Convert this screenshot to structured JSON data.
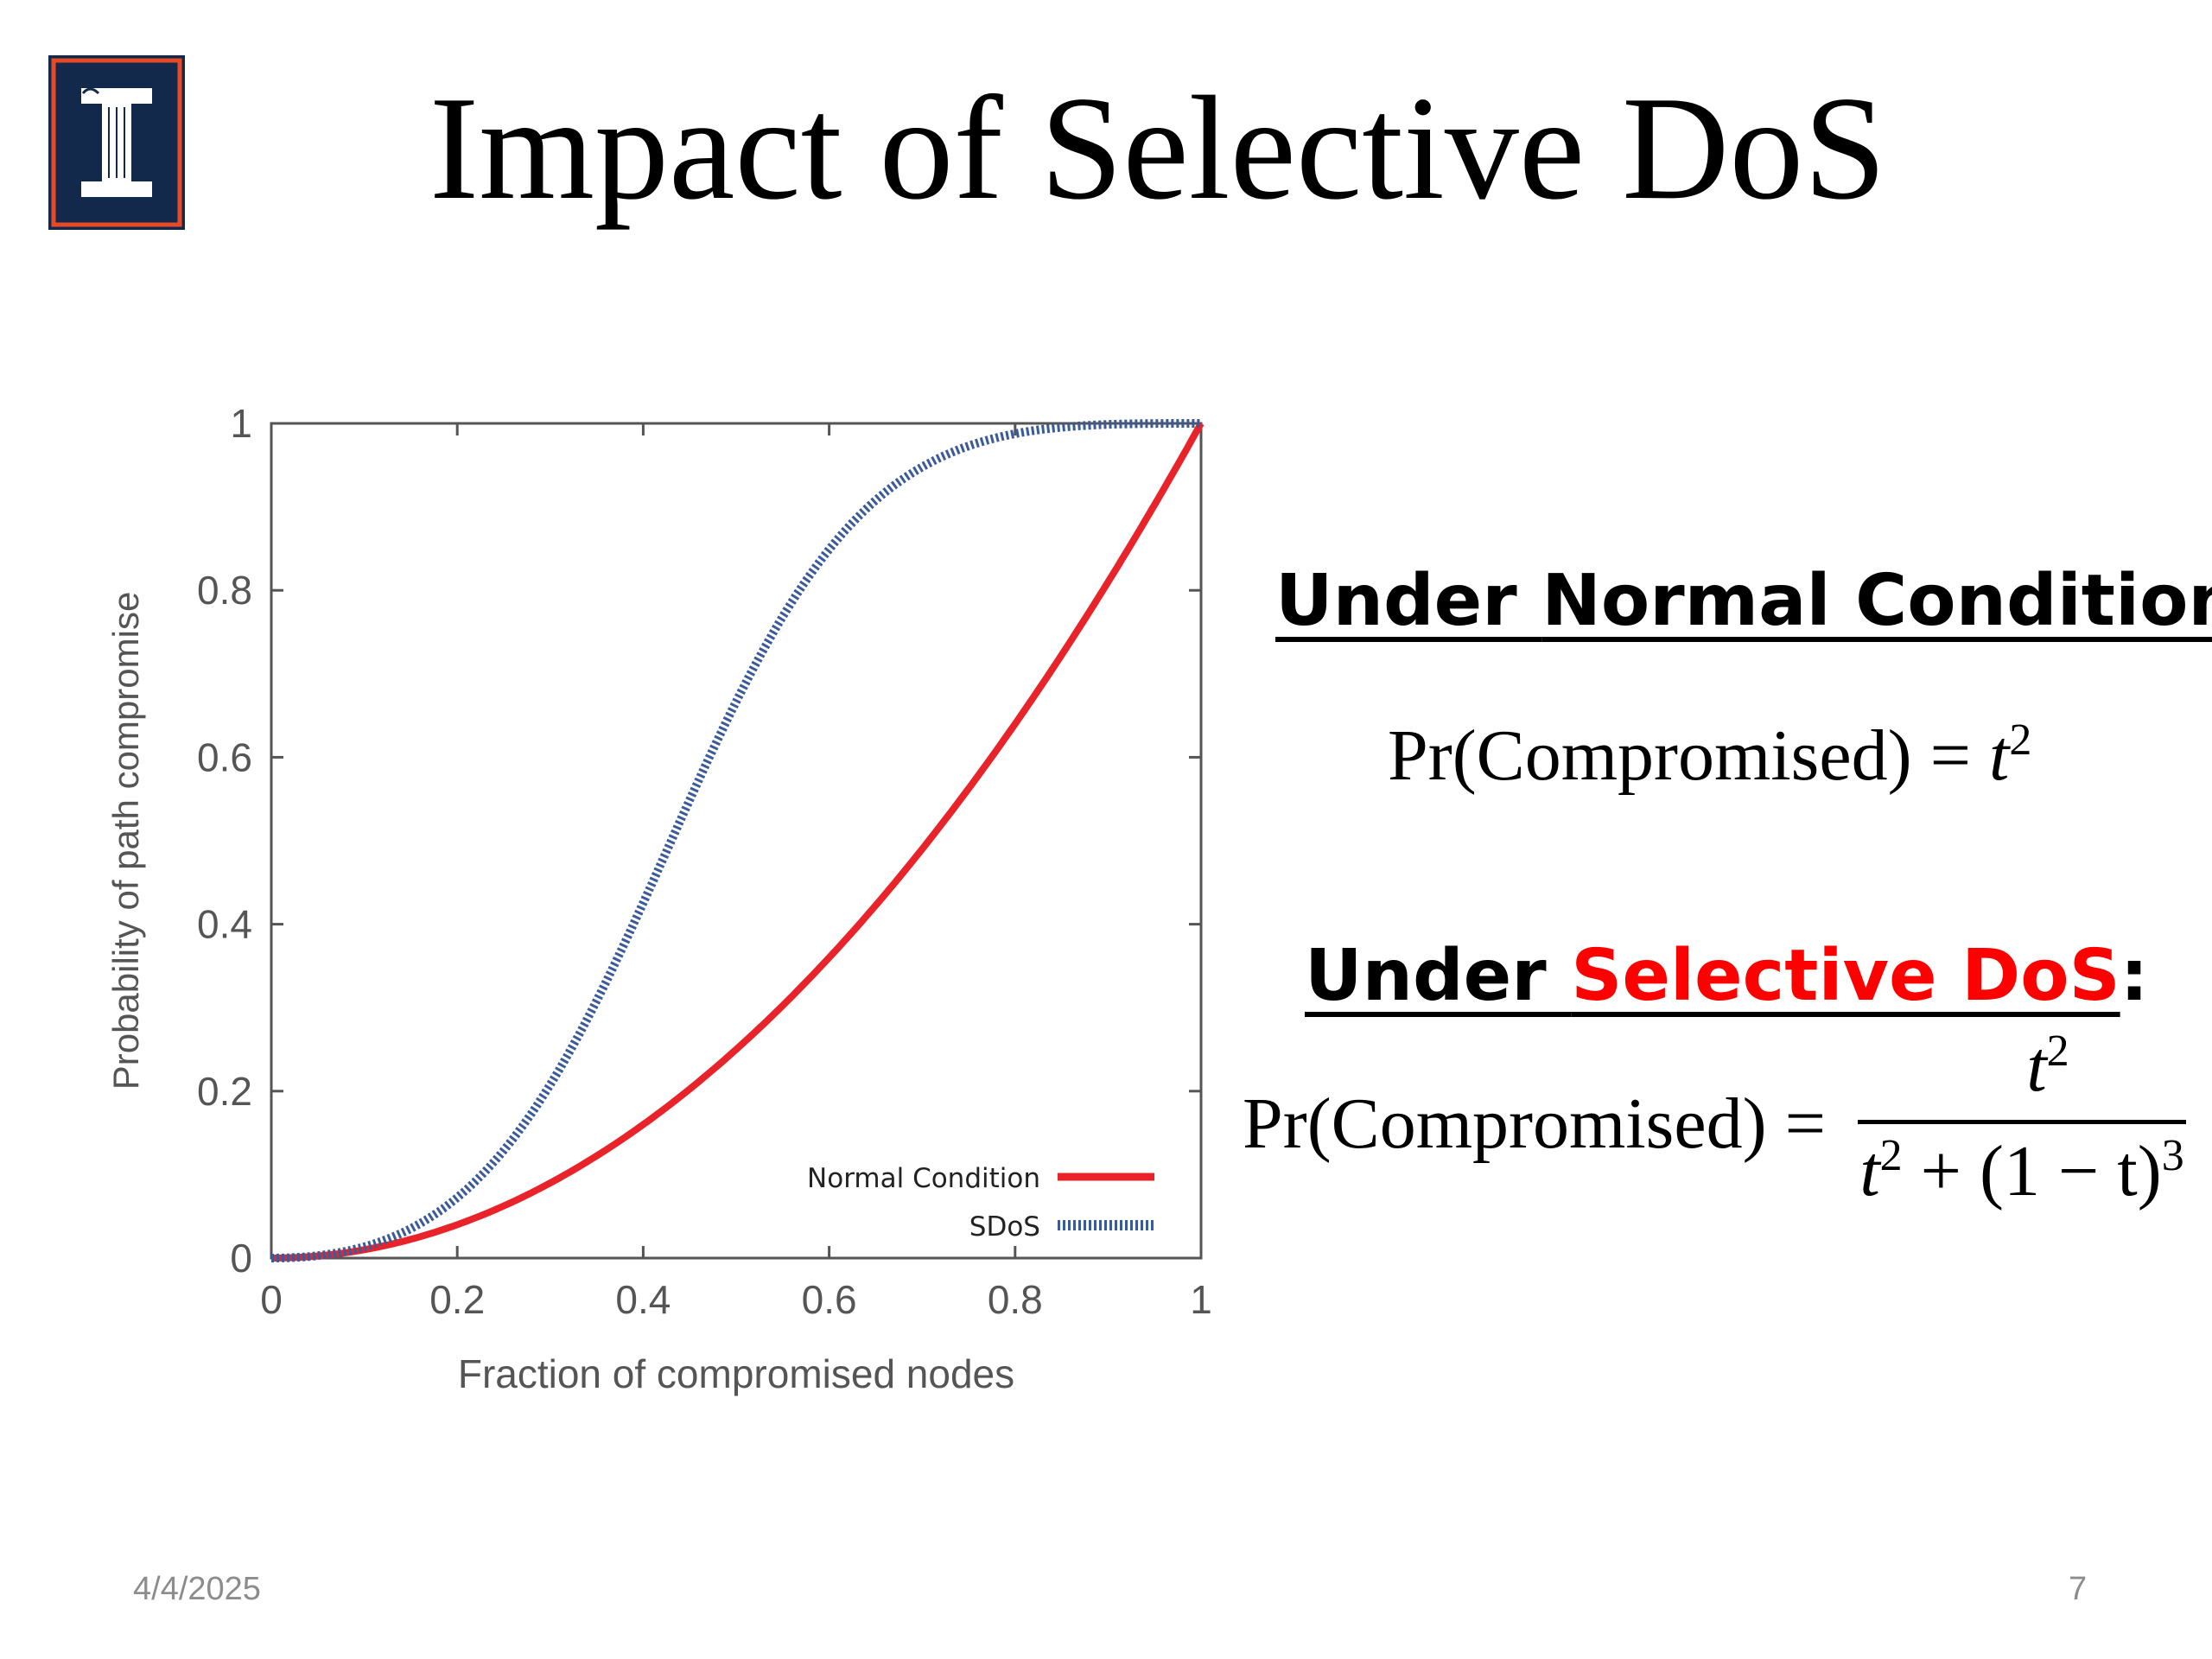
{
  "slide": {
    "title": "Impact of Selective DoS",
    "date": "4/4/2025",
    "page_number": "7",
    "accent_color": "#13294B",
    "logo_accent_color": "#E84A27"
  },
  "normal": {
    "heading_prefix": "Under ",
    "heading_main": "Normal Condition",
    "heading_suffix": ":",
    "formula_lhs": "Pr(Compromised) = ",
    "formula_var": "t",
    "formula_exp": "2"
  },
  "sdos": {
    "heading_prefix": "Under ",
    "heading_main": "Selective DoS",
    "heading_suffix": ":",
    "formula_lhs": "Pr(Compromised) = ",
    "numerator_var": "t",
    "numerator_exp": "2",
    "denominator_var": "t",
    "denominator_exp": "2",
    "denominator_rest": " + (1 − t)",
    "denominator_rest_exp": "3"
  },
  "chart_data": {
    "type": "line",
    "xlabel": "Fraction of compromised nodes",
    "ylabel": "Probability of path compromise",
    "xlim": [
      0,
      1
    ],
    "ylim": [
      0,
      1
    ],
    "xticks": [
      "0",
      "0.2",
      "0.4",
      "0.6",
      "0.8",
      "1"
    ],
    "yticks": [
      "0",
      "0.2",
      "0.4",
      "0.6",
      "0.8",
      "1"
    ],
    "legend_position": "bottom-right",
    "x": [
      0,
      0.05,
      0.1,
      0.15,
      0.2,
      0.25,
      0.3,
      0.35,
      0.4,
      0.45,
      0.5,
      0.55,
      0.6,
      0.65,
      0.7,
      0.75,
      0.8,
      0.85,
      0.9,
      0.95,
      1.0
    ],
    "series": [
      {
        "name": "Normal Condition",
        "color": "#e8242a",
        "style": "solid",
        "values": [
          0,
          0.0025,
          0.01,
          0.0225,
          0.04,
          0.0625,
          0.09,
          0.1225,
          0.16,
          0.2025,
          0.25,
          0.3025,
          0.36,
          0.4225,
          0.49,
          0.5625,
          0.64,
          0.7225,
          0.81,
          0.9025,
          1.0
        ]
      },
      {
        "name": "SDoS",
        "color": "#3a5a9a",
        "style": "dotted",
        "values": [
          0,
          0.0029,
          0.0135,
          0.0358,
          0.0725,
          0.129,
          0.2078,
          0.3069,
          0.4255,
          0.5533,
          0.6667,
          0.7641,
          0.8434,
          0.9025,
          0.9446,
          0.9715,
          0.9877,
          0.9955,
          0.9989,
          0.9999,
          1.0
        ]
      }
    ]
  }
}
